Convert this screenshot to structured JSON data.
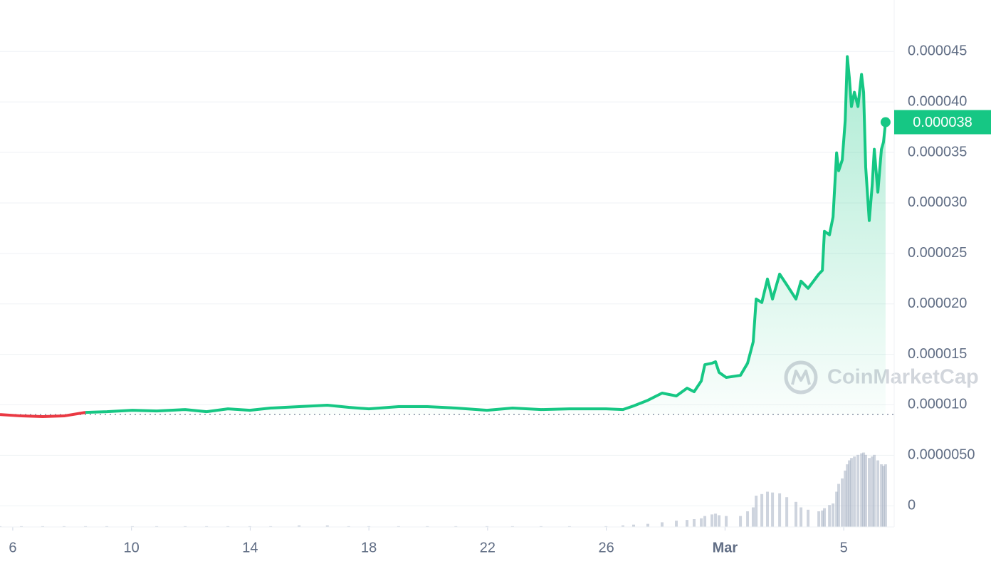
{
  "chart_data": {
    "type": "line",
    "x": [
      5.57,
      6.29,
      7.01,
      7.73,
      8.45,
      9.17,
      10.03,
      10.85,
      11.81,
      12.53,
      13.25,
      13.99,
      14.69,
      15.65,
      16.6,
      17.32,
      18,
      19,
      19.97,
      20.93,
      21.98,
      22.84,
      23.8,
      24.76,
      25.99,
      26.56,
      26.92,
      27.4,
      27.88,
      28.36,
      28.72,
      28.96,
      29.2,
      29.32,
      29.56,
      29.68,
      29.8,
      30.04,
      30.52,
      30.76,
      30.95,
      31.05,
      31.24,
      31.43,
      31.6,
      31.84,
      32.08,
      32.39,
      32.56,
      32.8,
      33.16,
      33.28,
      33.35,
      33.52,
      33.64,
      33.76,
      33.83,
      33.95,
      34.05,
      34.12,
      34.19,
      34.26,
      34.36,
      34.48,
      34.6,
      34.67,
      34.74,
      34.86,
      34.96,
      35.03,
      35.15,
      35.27,
      35.34,
      35.41
    ],
    "values": [
      9.04e-06,
      8.9e-06,
      8.83e-06,
      8.9e-06,
      9.25e-06,
      9.32e-06,
      9.46e-06,
      9.39e-06,
      9.53e-06,
      9.32e-06,
      9.6e-06,
      9.46e-06,
      9.68e-06,
      9.82e-06,
      9.96e-06,
      9.75e-06,
      9.6e-06,
      9.82e-06,
      9.82e-06,
      9.68e-06,
      9.46e-06,
      9.68e-06,
      9.53e-06,
      9.6e-06,
      9.6e-06,
      9.53e-06,
      9.89e-06,
      1.045e-05,
      1.116e-05,
      1.088e-05,
      1.165e-05,
      1.13e-05,
      1.236e-05,
      1.398e-05,
      1.412e-05,
      1.427e-05,
      1.321e-05,
      1.271e-05,
      1.292e-05,
      1.412e-05,
      1.624e-05,
      2.048e-05,
      2.013e-05,
      2.246e-05,
      2.048e-05,
      2.295e-05,
      2.189e-05,
      2.048e-05,
      2.225e-05,
      2.154e-05,
      2.295e-05,
      2.331e-05,
      2.719e-05,
      2.684e-05,
      2.86e-05,
      3.496e-05,
      3.319e-05,
      3.425e-05,
      3.814e-05,
      4.449e-05,
      4.237e-05,
      3.955e-05,
      4.096e-05,
      3.955e-05,
      4.273e-05,
      4.096e-05,
      3.355e-05,
      2.825e-05,
      3.178e-05,
      3.531e-05,
      3.107e-05,
      3.531e-05,
      3.602e-05,
      3.8e-05
    ],
    "up_color": "#16c784",
    "down_color": "#ea3943",
    "baseline": 9.04e-06,
    "current": {
      "value": 3.8e-05,
      "label": "0.000038"
    },
    "volume": {
      "color": "#a6b0c3",
      "values": [
        1,
        1,
        1,
        1,
        1,
        1,
        1,
        1,
        1,
        1,
        1,
        1,
        1,
        2,
        2,
        1,
        1,
        1,
        1,
        1,
        1,
        1,
        1,
        1,
        1,
        2,
        3,
        4,
        6,
        8,
        9,
        10,
        11,
        14,
        16,
        17,
        15,
        14,
        14,
        20,
        25,
        40,
        42,
        45,
        44,
        43,
        38,
        32,
        25,
        22,
        20,
        21,
        24,
        28,
        30,
        45,
        55,
        62,
        72,
        80,
        85,
        88,
        90,
        92,
        94,
        95,
        92,
        88,
        90,
        92,
        85,
        80,
        78,
        80
      ]
    },
    "y2lim": [
      0,
      100
    ],
    "xlim": [
      5.57,
      35.7
    ],
    "xticks": [
      6,
      10,
      14,
      18,
      22,
      26,
      {
        "value": 30,
        "label": "Mar"
      },
      {
        "value": 34,
        "label": "5"
      }
    ],
    "ylim": [
      -2.1e-06,
      5.01e-05
    ],
    "yticks": [
      {
        "value": 4.5e-05,
        "label": "0.000045"
      },
      {
        "value": 4e-05,
        "label": "0.000040"
      },
      {
        "value": 3.5e-05,
        "label": "0.000035"
      },
      {
        "value": 3e-05,
        "label": "0.000030"
      },
      {
        "value": 2.5e-05,
        "label": "0.000025"
      },
      {
        "value": 2e-05,
        "label": "0.000020"
      },
      {
        "value": 1.5e-05,
        "label": "0.000015"
      },
      {
        "value": 1e-05,
        "label": "0.000010"
      },
      {
        "value": 5e-06,
        "label": "0.0000050"
      },
      0
    ],
    "grid": true,
    "watermark": "CoinMarketCap"
  }
}
